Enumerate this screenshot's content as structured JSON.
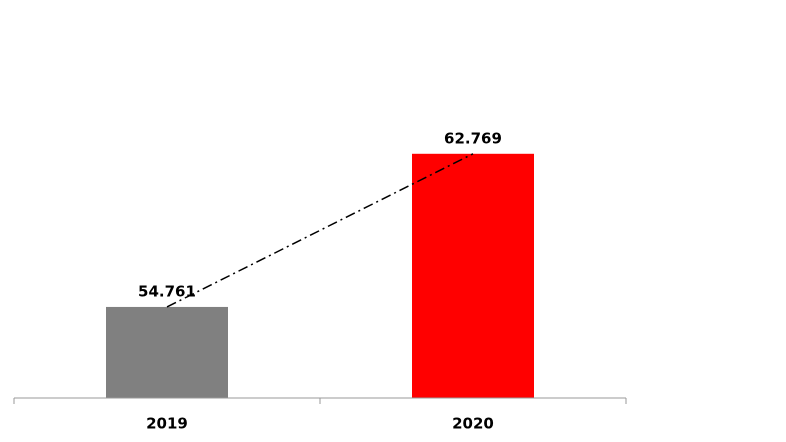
{
  "chart_data": {
    "type": "bar",
    "categories": [
      "2019",
      "2020"
    ],
    "values": [
      54.761,
      62.769
    ],
    "colors": [
      "#808080",
      "#ff0000"
    ],
    "ylim": [
      50,
      66
    ],
    "trend_line": true
  }
}
